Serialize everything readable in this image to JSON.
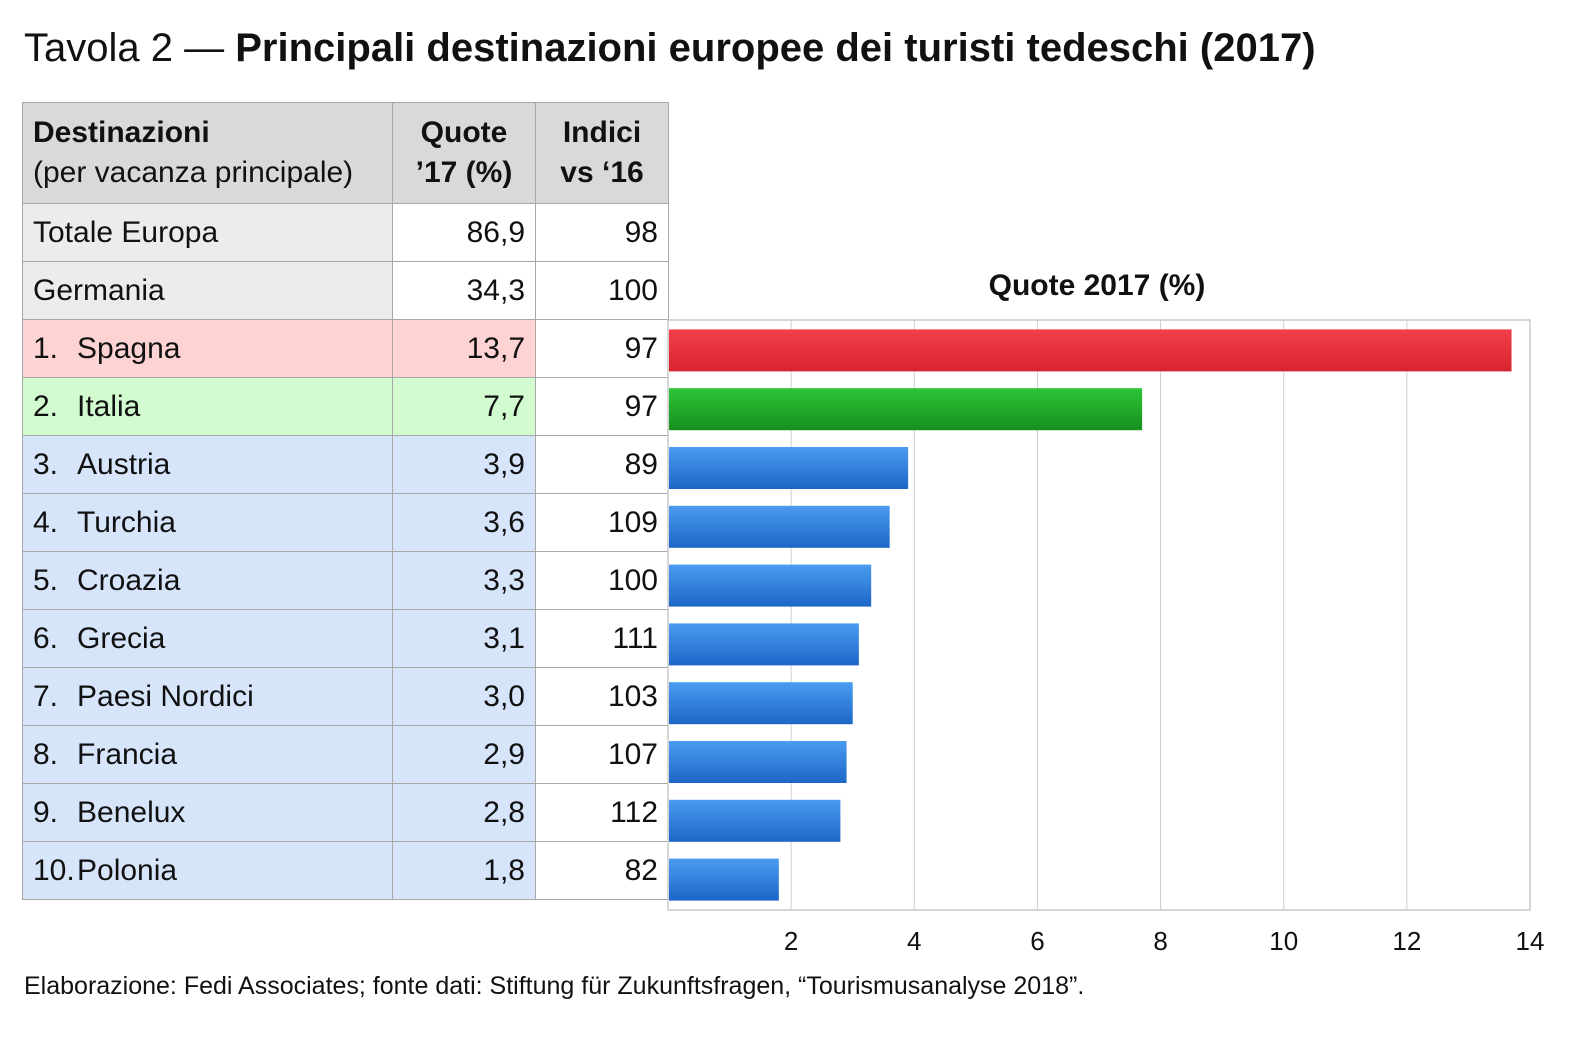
{
  "title": {
    "prefix": "Tavola 2 —",
    "main": "Principali destinazioni europee dei turisti tedeschi (2017)"
  },
  "table": {
    "headers": [
      {
        "line1": "Destinazioni",
        "line2": "(per vacanza principale)"
      },
      {
        "line1": "Quote",
        "line2": "’17 (%)"
      },
      {
        "line1": "Indici",
        "line2": "vs ‘16"
      }
    ],
    "rows": [
      {
        "rank": "",
        "name": "Totale Europa",
        "quota": "86,9",
        "indice": "98",
        "color": "gray"
      },
      {
        "rank": "",
        "name": "Germania",
        "quota": "34,3",
        "indice": "100",
        "color": "gray"
      },
      {
        "rank": "1.",
        "name": "Spagna",
        "quota": "13,7",
        "indice": "97",
        "color": "red"
      },
      {
        "rank": "2.",
        "name": "Italia",
        "quota": "7,7",
        "indice": "97",
        "color": "green"
      },
      {
        "rank": "3.",
        "name": "Austria",
        "quota": "3,9",
        "indice": "89",
        "color": "blue"
      },
      {
        "rank": "4.",
        "name": "Turchia",
        "quota": "3,6",
        "indice": "109",
        "color": "blue"
      },
      {
        "rank": "5.",
        "name": "Croazia",
        "quota": "3,3",
        "indice": "100",
        "color": "blue"
      },
      {
        "rank": "6.",
        "name": "Grecia",
        "quota": "3,1",
        "indice": "111",
        "color": "blue"
      },
      {
        "rank": "7.",
        "name": "Paesi Nordici",
        "quota": "3,0",
        "indice": "103",
        "color": "blue"
      },
      {
        "rank": "8.",
        "name": "Francia",
        "quota": "2,9",
        "indice": "107",
        "color": "blue"
      },
      {
        "rank": "9.",
        "name": "Benelux",
        "quota": "2,8",
        "indice": "112",
        "color": "blue"
      },
      {
        "rank": "10.",
        "name": "Polonia",
        "quota": "1,8",
        "indice": "82",
        "color": "blue"
      }
    ]
  },
  "chart_data": {
    "type": "bar",
    "orientation": "horizontal",
    "title": "Quote 2017 (%)",
    "categories": [
      "Spagna",
      "Italia",
      "Austria",
      "Turchia",
      "Croazia",
      "Grecia",
      "Paesi Nordici",
      "Francia",
      "Benelux",
      "Polonia"
    ],
    "values": [
      13.7,
      7.7,
      3.9,
      3.6,
      3.3,
      3.1,
      3.0,
      2.9,
      2.8,
      1.8
    ],
    "bar_colors": [
      "red",
      "green",
      "blue",
      "blue",
      "blue",
      "blue",
      "blue",
      "blue",
      "blue",
      "blue"
    ],
    "xlim": [
      0,
      14
    ],
    "xticks": [
      2,
      4,
      6,
      8,
      10,
      12,
      14
    ],
    "xlabel": "",
    "ylabel": "",
    "grid": true
  },
  "colors": {
    "red": "#e8303b",
    "green": "#22a52b",
    "blue": "#2f7fde",
    "row_gray": "#ececec",
    "row_red": "#fdd3d3",
    "row_green": "#d3fbd0",
    "row_blue": "#d7e5fb"
  },
  "footer": "Elaborazione: Fedi Associates; fonte dati: Stiftung für Zukunftsfragen, “Tourismusanalyse 2018”."
}
